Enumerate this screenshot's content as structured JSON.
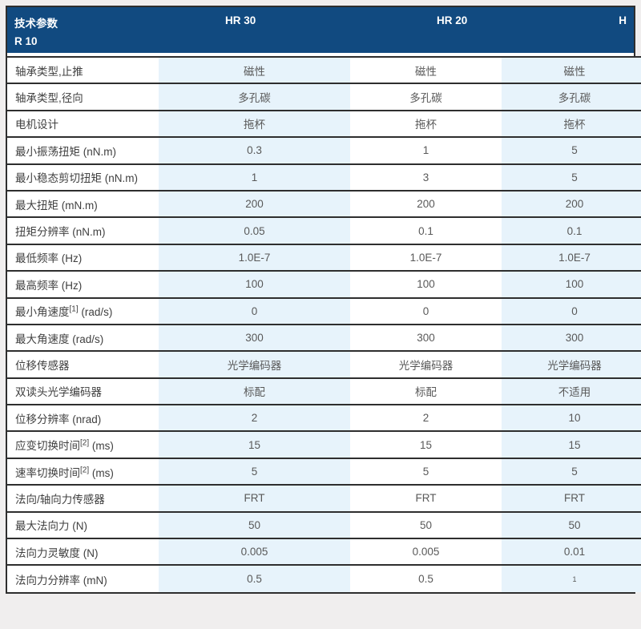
{
  "colors": {
    "header_bg": "#114a80",
    "header_text": "#ffffff",
    "stripe_bg": "#e7f3fb",
    "row_border": "#2e2e2e",
    "label_text": "#3f3f3f",
    "value_text": "#595959"
  },
  "table": {
    "header": {
      "title": "技术参数",
      "col_hr30": "HR 30",
      "col_hr20": "HR 20",
      "col_hr10_line1": "H",
      "col_hr10_line2": "R 10"
    },
    "rows": [
      {
        "label": {
          "pre": "轴承类型,止推",
          "sup": "",
          "post": ""
        },
        "hr30": "磁性",
        "hr20": "磁性",
        "hr10": "磁性"
      },
      {
        "label": {
          "pre": "轴承类型,径向",
          "sup": "",
          "post": ""
        },
        "hr30": "多孔碳",
        "hr20": "多孔碳",
        "hr10": "多孔碳"
      },
      {
        "label": {
          "pre": "电机设计",
          "sup": "",
          "post": ""
        },
        "hr30": "拖杯",
        "hr20": "拖杯",
        "hr10": "拖杯"
      },
      {
        "label": {
          "pre": "最小振荡扭矩 (nN.m)",
          "sup": "",
          "post": ""
        },
        "hr30": "0.3",
        "hr20": "1",
        "hr10": "5"
      },
      {
        "label": {
          "pre": "最小稳态剪切扭矩 (nN.m)",
          "sup": "",
          "post": ""
        },
        "hr30": "1",
        "hr20": "3",
        "hr10": "5"
      },
      {
        "label": {
          "pre": "最大扭矩 (mN.m)",
          "sup": "",
          "post": ""
        },
        "hr30": "200",
        "hr20": "200",
        "hr10": "200"
      },
      {
        "label": {
          "pre": "扭矩分辨率 (nN.m)",
          "sup": "",
          "post": ""
        },
        "hr30": "0.05",
        "hr20": "0.1",
        "hr10": "0.1"
      },
      {
        "label": {
          "pre": "最低频率 (Hz)",
          "sup": "",
          "post": ""
        },
        "hr30": "1.0E-7",
        "hr20": "1.0E-7",
        "hr10": "1.0E-7"
      },
      {
        "label": {
          "pre": "最高频率 (Hz)",
          "sup": "",
          "post": ""
        },
        "hr30": "100",
        "hr20": "100",
        "hr10": "100"
      },
      {
        "label": {
          "pre": "最小角速度",
          "sup": "[1]",
          "post": " (rad/s)"
        },
        "hr30": "0",
        "hr20": "0",
        "hr10": "0"
      },
      {
        "label": {
          "pre": "最大角速度 (rad/s)",
          "sup": "",
          "post": ""
        },
        "hr30": "300",
        "hr20": "300",
        "hr10": "300"
      },
      {
        "label": {
          "pre": "位移传感器",
          "sup": "",
          "post": ""
        },
        "hr30": "光学编码器",
        "hr20": "光学编码器",
        "hr10": "光学编码器"
      },
      {
        "label": {
          "pre": "双读头光学编码器",
          "sup": "",
          "post": ""
        },
        "hr30": "标配",
        "hr20": "标配",
        "hr10": "不适用"
      },
      {
        "label": {
          "pre": "位移分辨率 (nrad)",
          "sup": "",
          "post": ""
        },
        "hr30": "2",
        "hr20": "2",
        "hr10": "10"
      },
      {
        "label": {
          "pre": "应变切换时间",
          "sup": "[2]",
          "post": " (ms)"
        },
        "hr30": "15",
        "hr20": "15",
        "hr10": "15"
      },
      {
        "label": {
          "pre": "速率切换时间",
          "sup": "[2]",
          "post": " (ms)"
        },
        "hr30": "5",
        "hr20": "5",
        "hr10": "5"
      },
      {
        "label": {
          "pre": "法向/轴向力传感器",
          "sup": "",
          "post": ""
        },
        "hr30": "FRT",
        "hr20": "FRT",
        "hr10": "FRT"
      },
      {
        "label": {
          "pre": "最大法向力 (N)",
          "sup": "",
          "post": ""
        },
        "hr30": "50",
        "hr20": "50",
        "hr10": "50"
      },
      {
        "label": {
          "pre": "法向力灵敏度 (N)",
          "sup": "",
          "post": ""
        },
        "hr30": "0.005",
        "hr20": "0.005",
        "hr10": "0.01"
      },
      {
        "label": {
          "pre": "法向力分辨率 (mN)",
          "sup": "",
          "post": ""
        },
        "hr30": "0.5",
        "hr20": "0.5",
        "hr10": "1"
      }
    ]
  }
}
